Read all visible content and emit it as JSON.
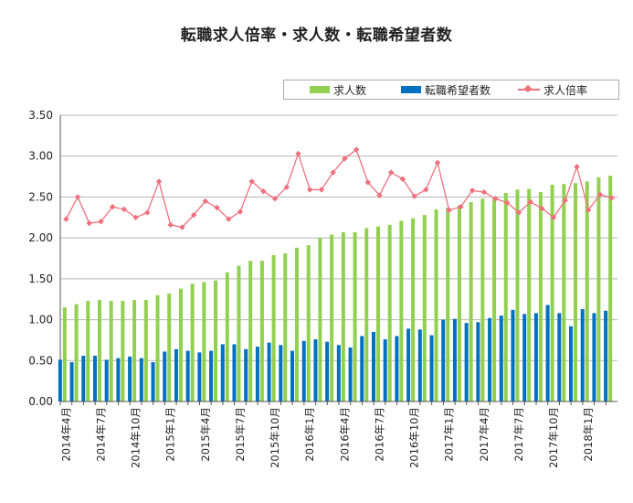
{
  "chart_data": {
    "type": "bar",
    "title": "転職求人倍率・求人数・転職希望者数",
    "xlabel": "",
    "ylabel": "",
    "ylim": [
      0,
      3.5
    ],
    "yticks": [
      "0.00",
      "0.50",
      "1.00",
      "1.50",
      "2.00",
      "2.50",
      "3.00",
      "3.50"
    ],
    "grid": "horizontal",
    "legend_position": "top-right",
    "colors": {
      "jobs": "#92d050",
      "seekers": "#0070c0",
      "ratio": "#f0707e"
    },
    "categories": [
      "2014年4月",
      "2014年5月",
      "2014年6月",
      "2014年7月",
      "2014年8月",
      "2014年9月",
      "2014年10月",
      "2014年11月",
      "2014年12月",
      "2015年1月",
      "2015年2月",
      "2015年3月",
      "2015年4月",
      "2015年5月",
      "2015年6月",
      "2015年7月",
      "2015年8月",
      "2015年9月",
      "2015年10月",
      "2015年11月",
      "2015年12月",
      "2016年1月",
      "2016年2月",
      "2016年3月",
      "2016年4月",
      "2016年5月",
      "2016年6月",
      "2016年7月",
      "2016年8月",
      "2016年9月",
      "2016年10月",
      "2016年11月",
      "2016年12月",
      "2017年1月",
      "2017年2月",
      "2017年3月",
      "2017年4月",
      "2017年5月",
      "2017年6月",
      "2017年7月",
      "2017年8月",
      "2017年9月",
      "2017年10月",
      "2017年11月",
      "2017年12月",
      "2018年1月",
      "2018年2月",
      "2018年3月"
    ],
    "tick_labels": [
      {
        "index": 0,
        "label": "2014年4月"
      },
      {
        "index": 3,
        "label": "2014年7月"
      },
      {
        "index": 6,
        "label": "2014年10月"
      },
      {
        "index": 9,
        "label": "2015年1月"
      },
      {
        "index": 12,
        "label": "2015年4月"
      },
      {
        "index": 15,
        "label": "2015年7月"
      },
      {
        "index": 18,
        "label": "2015年10月"
      },
      {
        "index": 21,
        "label": "2016年1月"
      },
      {
        "index": 24,
        "label": "2016年4月"
      },
      {
        "index": 27,
        "label": "2016年7月"
      },
      {
        "index": 30,
        "label": "2016年10月"
      },
      {
        "index": 33,
        "label": "2017年1月"
      },
      {
        "index": 36,
        "label": "2017年4月"
      },
      {
        "index": 39,
        "label": "2017年7月"
      },
      {
        "index": 42,
        "label": "2017年10月"
      },
      {
        "index": 45,
        "label": "2018年1月"
      }
    ],
    "series": [
      {
        "name": "求人数",
        "kind": "bar",
        "values": [
          1.15,
          1.19,
          1.23,
          1.24,
          1.23,
          1.23,
          1.24,
          1.24,
          1.3,
          1.32,
          1.38,
          1.44,
          1.46,
          1.48,
          1.58,
          1.66,
          1.72,
          1.72,
          1.79,
          1.81,
          1.88,
          1.91,
          2.0,
          2.04,
          2.07,
          2.07,
          2.12,
          2.14,
          2.16,
          2.21,
          2.24,
          2.28,
          2.35,
          2.37,
          2.4,
          2.44,
          2.48,
          2.5,
          2.55,
          2.59,
          2.6,
          2.56,
          2.65,
          2.66,
          2.67,
          2.69,
          2.74,
          2.76
        ]
      },
      {
        "name": "転職希望者数",
        "kind": "bar",
        "values": [
          0.51,
          0.48,
          0.56,
          0.56,
          0.51,
          0.53,
          0.55,
          0.53,
          0.48,
          0.61,
          0.64,
          0.62,
          0.6,
          0.62,
          0.7,
          0.7,
          0.64,
          0.67,
          0.72,
          0.69,
          0.62,
          0.74,
          0.76,
          0.73,
          0.69,
          0.66,
          0.8,
          0.85,
          0.76,
          0.8,
          0.89,
          0.88,
          0.81,
          1.0,
          1.01,
          0.96,
          0.97,
          1.02,
          1.05,
          1.12,
          1.07,
          1.08,
          1.18,
          1.08,
          0.92,
          1.13,
          1.08,
          1.11
        ]
      },
      {
        "name": "求人倍率",
        "kind": "line",
        "values": [
          2.23,
          2.5,
          2.18,
          2.2,
          2.38,
          2.35,
          2.25,
          2.31,
          2.69,
          2.16,
          2.13,
          2.28,
          2.45,
          2.37,
          2.23,
          2.32,
          2.69,
          2.57,
          2.48,
          2.62,
          3.03,
          2.59,
          2.59,
          2.8,
          2.97,
          3.08,
          2.68,
          2.52,
          2.8,
          2.72,
          2.51,
          2.59,
          2.92,
          2.34,
          2.38,
          2.58,
          2.56,
          2.48,
          2.43,
          2.31,
          2.44,
          2.36,
          2.25,
          2.46,
          2.87,
          2.34,
          2.53,
          2.49
        ]
      }
    ]
  }
}
